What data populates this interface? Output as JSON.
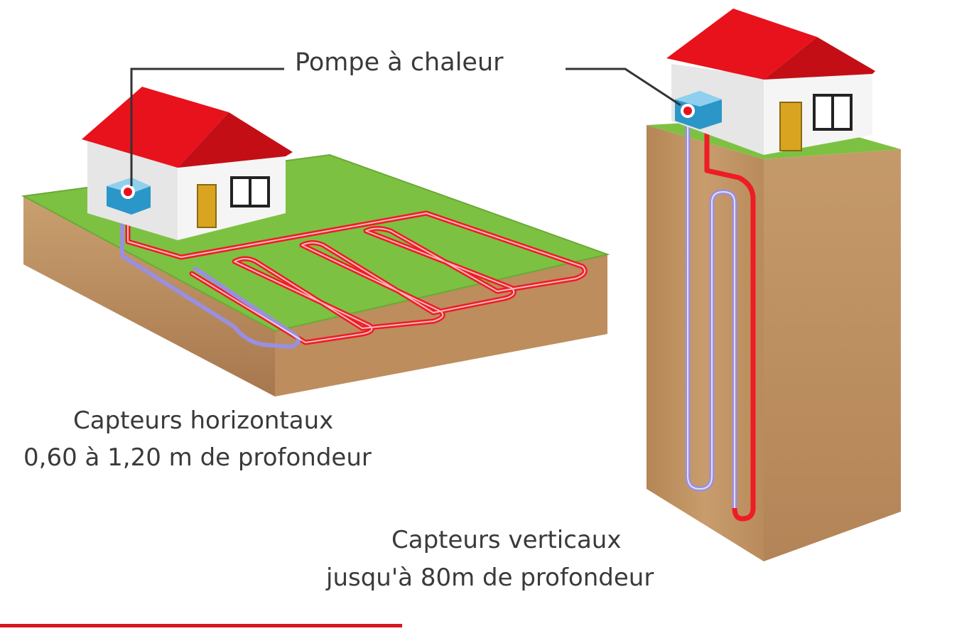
{
  "labels": {
    "heat_pump": "Pompe à chaleur",
    "horizontal_line1": "Capteurs horizontaux",
    "horizontal_line2": "0,60 à 1,20 m de profondeur",
    "vertical_line1": "Capteurs verticaux",
    "vertical_line2": "jusqu'à 80m de profondeur"
  },
  "colors": {
    "roof": "#e8121c",
    "wall": "#f4f4f4",
    "grass": "#7dc142",
    "soil_side": "#c79966",
    "soil_front": "#b07a4e",
    "pipe_hot": "#ee1c25",
    "pipe_cold": "#9a8fe0",
    "door": "#d9a521",
    "pump": "#2b96c8",
    "accent_rule": "#d9141c"
  }
}
